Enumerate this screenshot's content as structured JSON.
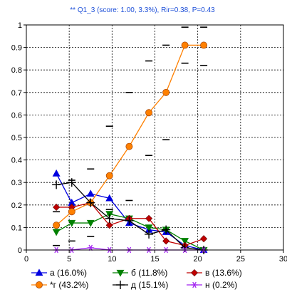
{
  "chart_data": {
    "type": "line",
    "title": "** Q1_3 (score: 1.00, 3.3%), Rir=0.38, P=0.43",
    "xlabel": "",
    "ylabel": "",
    "xlim": [
      0,
      30
    ],
    "ylim": [
      0,
      1
    ],
    "x_ticks": [
      0,
      5,
      10,
      15,
      20,
      25,
      30
    ],
    "y_ticks": [
      0,
      0.1,
      0.2,
      0.3,
      0.4,
      0.5,
      0.6,
      0.7,
      0.8,
      0.9,
      1
    ],
    "x_tick_labels": [
      "0",
      "5",
      "10",
      "15",
      "20",
      "25",
      "30"
    ],
    "y_tick_labels": [
      "0",
      "0.1",
      "0.2",
      "0.3",
      "0.4",
      "0.5",
      "0.6",
      "0.7",
      "0.8",
      "0.9",
      "1"
    ],
    "grid": true,
    "legend_position": "bottom",
    "series": [
      {
        "name": "а (16.0%)",
        "marker": "triangle-up",
        "color": "#0000e0",
        "x": [
          3.5,
          5.3,
          7.5,
          9.7,
          12.0,
          14.3,
          16.3,
          18.5,
          20.7
        ],
        "y": [
          0.34,
          0.21,
          0.25,
          0.23,
          0.12,
          0.09,
          0.08,
          0.02,
          0.0
        ]
      },
      {
        "name": "б (11.8%)",
        "marker": "triangle-down",
        "color": "#008000",
        "x": [
          3.5,
          5.3,
          7.5,
          9.7,
          12.0,
          14.3,
          16.3,
          18.5,
          20.7
        ],
        "y": [
          0.08,
          0.12,
          0.12,
          0.16,
          0.14,
          0.1,
          0.09,
          0.04,
          0.0
        ]
      },
      {
        "name": "в (13.6%)",
        "marker": "diamond",
        "color": "#c00000",
        "x": [
          3.5,
          5.3,
          7.5,
          9.7,
          12.0,
          14.3,
          16.3,
          18.5,
          20.7
        ],
        "y": [
          0.19,
          0.19,
          0.21,
          0.11,
          0.14,
          0.14,
          0.04,
          0.02,
          0.05
        ]
      },
      {
        "name": "*г (43.2%)",
        "marker": "circle",
        "color": "#ff8000",
        "x": [
          3.5,
          5.3,
          7.5,
          9.7,
          12.0,
          14.3,
          16.3,
          18.5,
          20.7
        ],
        "y": [
          0.11,
          0.17,
          0.21,
          0.33,
          0.46,
          0.61,
          0.7,
          0.91,
          0.91
        ]
      },
      {
        "name": "д (15.1%)",
        "marker": "plus",
        "color": "#000000",
        "x": [
          3.5,
          5.3,
          7.5,
          9.7,
          12.0,
          14.3,
          16.3,
          18.5,
          20.7
        ],
        "y": [
          0.29,
          0.3,
          0.21,
          0.14,
          0.13,
          0.07,
          0.09,
          0.01,
          0.0
        ]
      },
      {
        "name": "н (0.2%)",
        "marker": "asterisk",
        "color": "#a020f0",
        "x": [
          3.5,
          5.3,
          7.5,
          9.7,
          12.0,
          14.3,
          16.3,
          18.5,
          20.7
        ],
        "y": [
          0.0,
          0.0,
          0.01,
          0.0,
          0.0,
          0.0,
          0.0,
          0.0,
          0.0
        ]
      }
    ],
    "confidence_bars": {
      "x": [
        3.5,
        5.3,
        7.5,
        9.7,
        12.0,
        14.3,
        16.3,
        18.5,
        20.7
      ],
      "upper": [
        0.17,
        0.31,
        0.36,
        0.55,
        0.7,
        0.84,
        0.91,
        0.99,
        0.99
      ],
      "lower": [
        0.02,
        0.04,
        0.06,
        0.18,
        0.22,
        0.42,
        0.49,
        0.83,
        0.82
      ]
    }
  }
}
